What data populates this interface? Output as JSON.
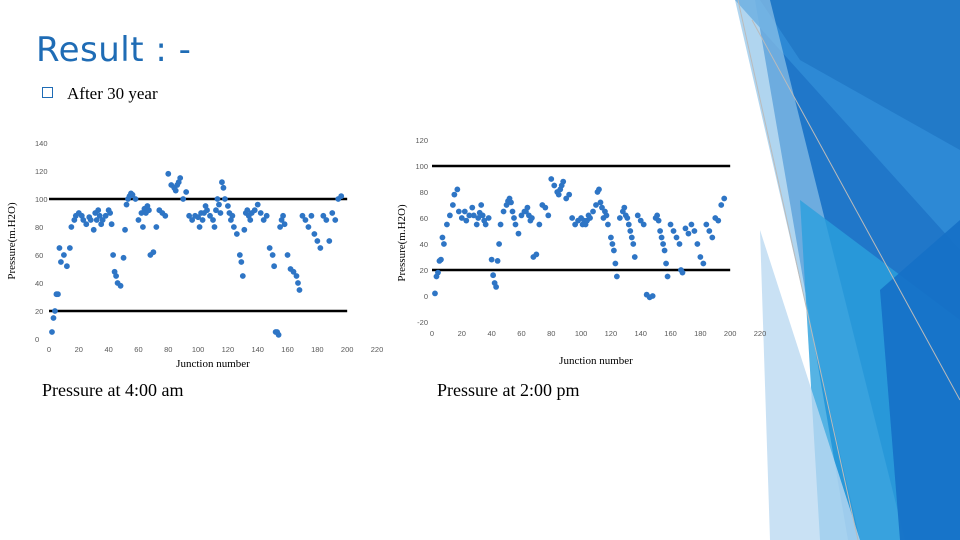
{
  "slide": {
    "title": "Result : -",
    "bullet": "After 30 year",
    "captions": [
      "Pressure at 4:00 am",
      "Pressure at 2:00 pm"
    ],
    "colors": {
      "accent": "#1f6cb5",
      "points": "#2e75c5",
      "limit_lines": "#000000"
    }
  },
  "chart_data": [
    {
      "type": "scatter",
      "xlabel": "Junction number",
      "ylabel": "Pressure(m.H2O)",
      "xlim": [
        0,
        220
      ],
      "ylim": [
        0,
        140
      ],
      "x_ticks": [
        "0",
        "20",
        "40",
        "60",
        "80",
        "100",
        "120",
        "140",
        "160",
        "180",
        "200",
        "220"
      ],
      "y_ticks": [
        "0",
        "20",
        "40",
        "60",
        "80",
        "100",
        "120",
        "140"
      ],
      "reference_lines": [
        {
          "y": 100,
          "x_from": 0,
          "x_to": 200
        },
        {
          "y": 20,
          "x_from": 0,
          "x_to": 200
        }
      ],
      "x": [
        2,
        3,
        4,
        5,
        6,
        7,
        8,
        10,
        12,
        14,
        15,
        17,
        18,
        20,
        22,
        23,
        25,
        27,
        28,
        30,
        31,
        32,
        33,
        34,
        35,
        36,
        38,
        40,
        41,
        42,
        43,
        44,
        45,
        46,
        48,
        50,
        51,
        52,
        53,
        54,
        55,
        56,
        58,
        60,
        62,
        63,
        64,
        65,
        66,
        67,
        68,
        70,
        72,
        74,
        76,
        78,
        80,
        82,
        84,
        85,
        86,
        87,
        88,
        90,
        92,
        94,
        96,
        98,
        100,
        101,
        102,
        103,
        104,
        105,
        106,
        108,
        110,
        111,
        112,
        113,
        114,
        115,
        116,
        117,
        118,
        120,
        121,
        122,
        123,
        124,
        126,
        128,
        129,
        130,
        131,
        132,
        133,
        134,
        135,
        136,
        138,
        140,
        142,
        144,
        146,
        148,
        150,
        151,
        152,
        153,
        154,
        155,
        156,
        157,
        158,
        160,
        162,
        164,
        166,
        167,
        168,
        170,
        172,
        174,
        176,
        178,
        180,
        182,
        184,
        186,
        188,
        190,
        192,
        194,
        196
      ],
      "y": [
        5,
        15,
        20,
        32,
        32,
        65,
        55,
        60,
        52,
        65,
        80,
        85,
        88,
        90,
        88,
        85,
        82,
        87,
        85,
        78,
        90,
        85,
        92,
        88,
        82,
        85,
        88,
        92,
        90,
        82,
        60,
        48,
        45,
        40,
        38,
        58,
        78,
        96,
        100,
        102,
        104,
        103,
        100,
        85,
        90,
        80,
        93,
        90,
        95,
        92,
        60,
        62,
        80,
        92,
        90,
        88,
        118,
        110,
        108,
        106,
        110,
        112,
        115,
        100,
        105,
        88,
        85,
        88,
        87,
        80,
        90,
        85,
        90,
        95,
        92,
        88,
        85,
        80,
        92,
        100,
        96,
        90,
        112,
        108,
        100,
        95,
        90,
        85,
        88,
        80,
        75,
        60,
        55,
        45,
        78,
        90,
        92,
        88,
        85,
        90,
        92,
        96,
        90,
        85,
        88,
        65,
        60,
        52,
        5,
        5,
        3,
        80,
        85,
        88,
        82,
        60,
        50,
        48,
        45,
        40,
        35,
        88,
        85,
        80,
        88,
        75,
        70,
        65,
        88,
        85,
        70,
        90,
        85,
        100,
        102
      ]
    },
    {
      "type": "scatter",
      "xlabel": "Junction number",
      "ylabel": "Pressure(m.H2O)",
      "xlim": [
        0,
        220
      ],
      "ylim": [
        -20,
        120
      ],
      "x_ticks": [
        "0",
        "20",
        "40",
        "60",
        "80",
        "100",
        "120",
        "140",
        "160",
        "180",
        "200",
        "220"
      ],
      "y_ticks": [
        "-20",
        "0",
        "20",
        "40",
        "60",
        "80",
        "100",
        "120"
      ],
      "reference_lines": [
        {
          "y": 100,
          "x_from": 0,
          "x_to": 200
        },
        {
          "y": 20,
          "x_from": 0,
          "x_to": 200
        }
      ],
      "x": [
        2,
        3,
        4,
        5,
        6,
        7,
        8,
        10,
        12,
        14,
        15,
        17,
        18,
        20,
        22,
        23,
        25,
        27,
        28,
        30,
        31,
        32,
        33,
        34,
        35,
        36,
        38,
        40,
        41,
        42,
        43,
        44,
        45,
        46,
        48,
        50,
        51,
        52,
        53,
        54,
        55,
        56,
        58,
        60,
        62,
        63,
        64,
        65,
        66,
        67,
        68,
        70,
        72,
        74,
        76,
        78,
        80,
        82,
        84,
        85,
        86,
        87,
        88,
        90,
        92,
        94,
        96,
        98,
        100,
        101,
        102,
        103,
        104,
        105,
        106,
        108,
        110,
        111,
        112,
        113,
        114,
        115,
        116,
        117,
        118,
        120,
        121,
        122,
        123,
        124,
        126,
        128,
        129,
        130,
        131,
        132,
        133,
        134,
        135,
        136,
        138,
        140,
        142,
        144,
        146,
        148,
        150,
        151,
        152,
        153,
        154,
        155,
        156,
        157,
        158,
        160,
        162,
        164,
        166,
        167,
        168,
        170,
        172,
        174,
        176,
        178,
        180,
        182,
        184,
        186,
        188,
        190,
        192,
        194,
        196
      ],
      "y": [
        2,
        15,
        18,
        27,
        28,
        45,
        40,
        55,
        62,
        70,
        78,
        82,
        65,
        60,
        65,
        58,
        62,
        68,
        62,
        55,
        60,
        64,
        70,
        62,
        58,
        55,
        60,
        28,
        16,
        10,
        7,
        27,
        40,
        55,
        65,
        70,
        73,
        75,
        72,
        65,
        60,
        55,
        48,
        62,
        65,
        65,
        68,
        62,
        58,
        60,
        30,
        32,
        55,
        70,
        68,
        62,
        90,
        85,
        80,
        78,
        82,
        85,
        88,
        75,
        78,
        60,
        55,
        58,
        60,
        55,
        58,
        55,
        58,
        62,
        60,
        65,
        70,
        80,
        82,
        72,
        68,
        60,
        65,
        62,
        55,
        45,
        40,
        35,
        25,
        15,
        60,
        65,
        68,
        62,
        60,
        55,
        50,
        45,
        40,
        30,
        62,
        58,
        55,
        1,
        -1,
        0,
        60,
        62,
        58,
        50,
        45,
        40,
        35,
        25,
        15,
        55,
        50,
        45,
        40,
        20,
        18,
        52,
        48,
        55,
        50,
        40,
        30,
        25,
        55,
        50,
        45,
        60,
        58,
        70,
        75
      ]
    }
  ]
}
